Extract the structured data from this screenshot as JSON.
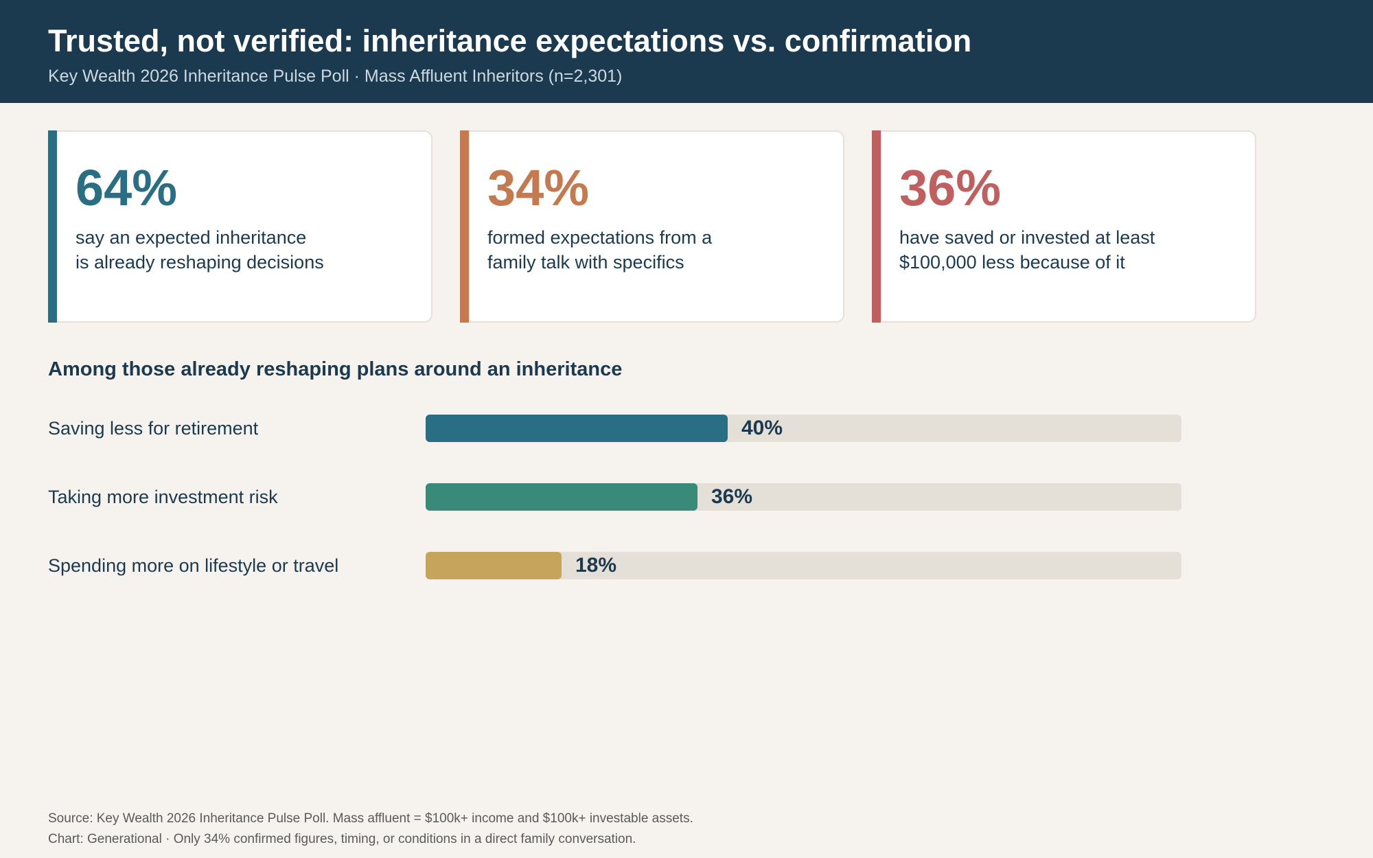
{
  "header": {
    "title": "Trusted, not verified: inheritance expectations vs. confirmation",
    "subtitle": "Key Wealth 2026 Inheritance Pulse Poll · Mass Affluent Inheritors (n=2,301)"
  },
  "cards": [
    {
      "stat": "64%",
      "line1": "say an expected inheritance",
      "line2": "is already reshaping decisions",
      "color": "#2a6e84"
    },
    {
      "stat": "34%",
      "line1": "formed expectations from a",
      "line2": "family talk with specifics",
      "color": "#c47a4e"
    },
    {
      "stat": "36%",
      "line1": "have saved or invested at least",
      "line2": "$100,000 less because of it",
      "color": "#bf5f5f"
    }
  ],
  "chart_data": {
    "type": "bar",
    "orientation": "horizontal",
    "title": "Among those already reshaping plans around an inheritance",
    "categories": [
      "Saving less for retirement",
      "Taking more investment risk",
      "Spending more on lifestyle or travel"
    ],
    "values": [
      40,
      36,
      18
    ],
    "value_labels": [
      "40%",
      "36%",
      "18%"
    ],
    "colors": [
      "#2a6e84",
      "#3a8a7a",
      "#c6a45c"
    ],
    "xlim": [
      0,
      100
    ],
    "grid": false,
    "legend": "none"
  },
  "footer": {
    "source": "Source: Key Wealth 2026 Inheritance Pulse Poll. Mass affluent = $100k+ income and $100k+ investable assets.",
    "note": "Chart: Generational  ·  Only 34% confirmed figures, timing, or conditions in a direct family conversation."
  }
}
